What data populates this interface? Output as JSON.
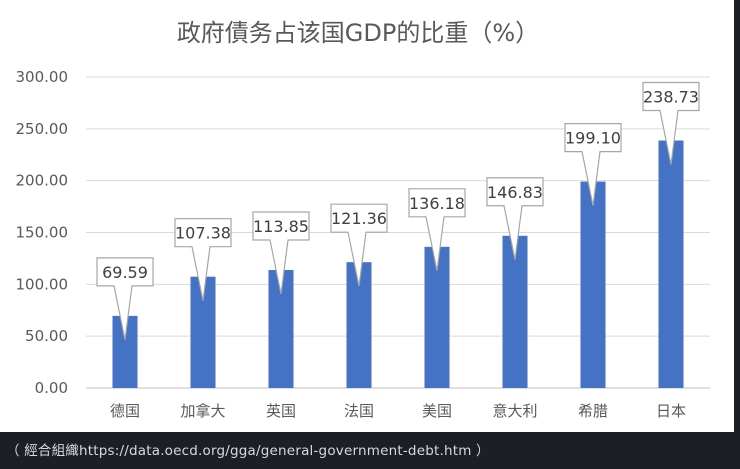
{
  "chart_data": {
    "type": "bar",
    "title": "政府債务占该国GDP的比重（%）",
    "categories": [
      "德国",
      "加拿大",
      "英国",
      "法国",
      "美国",
      "意大利",
      "希腊",
      "日本"
    ],
    "values": [
      69.59,
      107.38,
      113.85,
      121.36,
      136.18,
      146.83,
      199.1,
      238.73
    ],
    "data_labels": [
      "69.59",
      "107.38",
      "113.85",
      "121.36",
      "136.18",
      "146.83",
      "199.10",
      "238.73"
    ],
    "y_ticks": [
      "0.00",
      "50.00",
      "100.00",
      "150.00",
      "200.00",
      "250.00",
      "300.00"
    ],
    "ylim": [
      0,
      300
    ],
    "xlabel": "",
    "ylabel": "",
    "grid": true,
    "legend": "none",
    "colors": {
      "bar": "#4472c4",
      "grid": "#d9d9d9",
      "text": "#595959"
    }
  },
  "caption": "（ 經合組織https://data.oecd.org/gga/general-government-debt.htm ）"
}
